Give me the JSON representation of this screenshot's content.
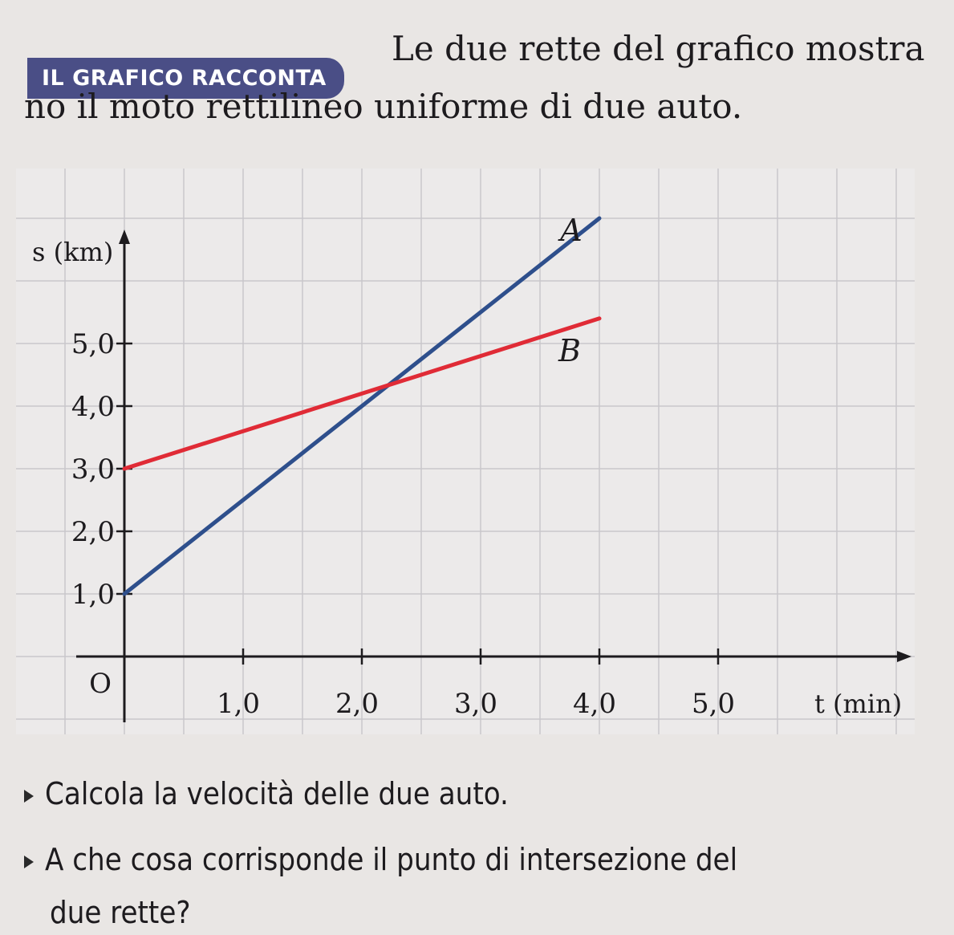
{
  "header": {
    "badge": "IL GRAFICO RACCONTA",
    "intro_line1": "Le due rette del grafico mostra",
    "intro_line2": "no il moto rettilineo uniforme di due auto."
  },
  "chart_data": {
    "type": "line",
    "xlabel": "t (min)",
    "ylabel": "s (km)",
    "xlim": [
      0,
      5.5
    ],
    "ylim": [
      0,
      6.5
    ],
    "x_ticks": [
      {
        "value": 1.0,
        "label": "1,0"
      },
      {
        "value": 2.0,
        "label": "2,0"
      },
      {
        "value": 3.0,
        "label": "3,0"
      },
      {
        "value": 4.0,
        "label": "4,0"
      },
      {
        "value": 5.0,
        "label": "5,0"
      }
    ],
    "y_ticks": [
      {
        "value": 1.0,
        "label": "1,0"
      },
      {
        "value": 2.0,
        "label": "2,0"
      },
      {
        "value": 3.0,
        "label": "3,0"
      },
      {
        "value": 4.0,
        "label": "4,0"
      },
      {
        "value": 5.0,
        "label": "5,0"
      }
    ],
    "origin_label": "O",
    "grid": true,
    "series": [
      {
        "name": "A",
        "color": "#2e4f8c",
        "x": [
          0,
          4.0
        ],
        "y": [
          1.0,
          7.0
        ]
      },
      {
        "name": "B",
        "color": "#e02b36",
        "x": [
          0,
          4.0
        ],
        "y": [
          3.0,
          5.4
        ]
      }
    ]
  },
  "questions": {
    "q1": "Calcola la velocità delle due auto.",
    "q2": "A che cosa corrisponde il punto di intersezione del",
    "q2_cont": "due rette?"
  }
}
